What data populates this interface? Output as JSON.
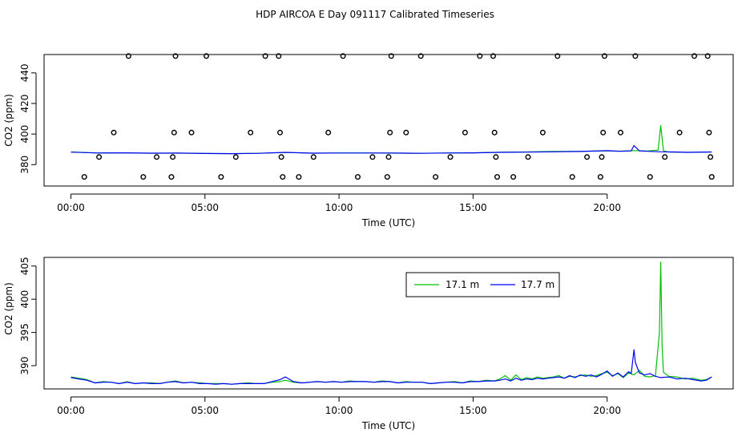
{
  "title": "HDP AIRCOA E  Day 091117  Calibrated Timeseries",
  "chart_data": [
    {
      "type": "line",
      "name": "top-panel",
      "xlabel": "Time (UTC)",
      "ylabel": "CO2 (ppm)",
      "xlim": [
        -1,
        24.7
      ],
      "ylim": [
        366,
        452
      ],
      "x_tick_values": [
        0,
        5,
        10,
        15,
        20
      ],
      "x_tick_labels": [
        "00:00",
        "05:00",
        "10:00",
        "15:00",
        "20:00"
      ],
      "y_ticks": [
        380,
        400,
        420,
        440
      ],
      "grid": false,
      "line_series": [
        {
          "color": "#00c000",
          "x": [
            0.0,
            1.0,
            2.0,
            3.0,
            4.0,
            5.0,
            6.0,
            7.0,
            8.0,
            9.0,
            10.0,
            11.0,
            12.0,
            13.0,
            14.0,
            15.0,
            16.0,
            17.0,
            18.0,
            19.0,
            20.0,
            20.5,
            21.0,
            21.5,
            21.9,
            22.0,
            22.1,
            22.3,
            23.0,
            23.9
          ],
          "y": [
            388.3,
            387.6,
            387.7,
            387.4,
            387.5,
            387.3,
            387.2,
            387.4,
            387.9,
            387.5,
            387.6,
            387.6,
            387.5,
            387.4,
            387.6,
            387.7,
            388.1,
            388.3,
            388.6,
            388.7,
            389.0,
            388.8,
            389.2,
            388.9,
            389.5,
            405.6,
            389.0,
            388.2,
            388.0,
            388.3
          ]
        },
        {
          "color": "#0000ff",
          "x": [
            0.0,
            1.0,
            2.0,
            3.0,
            4.0,
            5.0,
            6.0,
            7.0,
            8.0,
            9.0,
            10.0,
            11.0,
            12.0,
            13.0,
            14.0,
            15.0,
            16.0,
            17.0,
            18.0,
            19.0,
            20.0,
            20.5,
            20.9,
            21.0,
            21.2,
            21.5,
            22.0,
            22.5,
            23.0,
            23.9
          ],
          "y": [
            388.2,
            387.6,
            387.7,
            387.5,
            387.6,
            387.3,
            387.2,
            387.4,
            388.0,
            387.5,
            387.6,
            387.6,
            387.6,
            387.4,
            387.6,
            387.7,
            388.0,
            388.2,
            388.4,
            388.6,
            389.1,
            388.7,
            389.0,
            392.5,
            389.0,
            388.7,
            388.4,
            388.3,
            388.0,
            388.3
          ]
        }
      ],
      "scatter_series": {
        "marker": "open-circle",
        "color": "#000000",
        "points": [
          [
            0.5,
            372
          ],
          [
            1.05,
            385
          ],
          [
            1.6,
            401
          ],
          [
            2.15,
            451
          ],
          [
            2.7,
            372
          ],
          [
            3.2,
            385
          ],
          [
            3.75,
            372
          ],
          [
            3.8,
            385
          ],
          [
            3.85,
            401
          ],
          [
            3.9,
            451
          ],
          [
            4.5,
            401
          ],
          [
            5.05,
            451
          ],
          [
            5.6,
            372
          ],
          [
            6.15,
            385
          ],
          [
            6.7,
            401
          ],
          [
            7.25,
            451
          ],
          [
            7.75,
            451
          ],
          [
            7.8,
            401
          ],
          [
            7.85,
            385
          ],
          [
            7.9,
            372
          ],
          [
            8.5,
            372
          ],
          [
            9.05,
            385
          ],
          [
            9.6,
            401
          ],
          [
            10.15,
            451
          ],
          [
            10.7,
            372
          ],
          [
            11.25,
            385
          ],
          [
            11.8,
            372
          ],
          [
            11.85,
            385
          ],
          [
            11.9,
            401
          ],
          [
            11.95,
            451
          ],
          [
            12.5,
            401
          ],
          [
            13.05,
            451
          ],
          [
            13.6,
            372
          ],
          [
            14.15,
            385
          ],
          [
            14.7,
            401
          ],
          [
            15.25,
            451
          ],
          [
            15.75,
            451
          ],
          [
            15.8,
            401
          ],
          [
            15.85,
            385
          ],
          [
            15.9,
            372
          ],
          [
            16.5,
            372
          ],
          [
            17.05,
            385
          ],
          [
            17.6,
            401
          ],
          [
            18.15,
            451
          ],
          [
            18.7,
            372
          ],
          [
            19.25,
            385
          ],
          [
            19.75,
            372
          ],
          [
            19.8,
            385
          ],
          [
            19.85,
            401
          ],
          [
            19.9,
            451
          ],
          [
            20.5,
            401
          ],
          [
            21.05,
            451
          ],
          [
            21.6,
            372
          ],
          [
            22.15,
            385
          ],
          [
            22.7,
            401
          ],
          [
            23.25,
            451
          ],
          [
            23.75,
            451
          ],
          [
            23.8,
            401
          ],
          [
            23.85,
            385
          ],
          [
            23.9,
            372
          ]
        ]
      }
    },
    {
      "type": "line",
      "name": "bottom-panel",
      "xlabel": "Time (UTC)",
      "ylabel": "CO2 (ppm)",
      "xlim": [
        -1,
        24.7
      ],
      "ylim": [
        386.5,
        406.3
      ],
      "x_tick_values": [
        0,
        5,
        10,
        15,
        20
      ],
      "x_tick_labels": [
        "00:00",
        "05:00",
        "10:00",
        "15:00",
        "20:00"
      ],
      "y_ticks": [
        390,
        395,
        400,
        405
      ],
      "grid": false,
      "legend_position": "top-right",
      "series": [
        {
          "name": "17.1 m",
          "color": "#00c000",
          "x": [
            0.0,
            0.3,
            0.6,
            0.9,
            1.2,
            1.5,
            1.8,
            2.1,
            2.4,
            2.7,
            3.0,
            3.3,
            3.6,
            3.9,
            4.2,
            4.5,
            4.8,
            5.1,
            5.4,
            5.7,
            6.0,
            6.3,
            6.6,
            6.9,
            7.2,
            7.5,
            7.8,
            8.0,
            8.3,
            8.6,
            8.9,
            9.2,
            9.5,
            9.8,
            10.1,
            10.4,
            10.7,
            11.0,
            11.3,
            11.6,
            11.9,
            12.2,
            12.5,
            12.8,
            13.1,
            13.4,
            13.7,
            14.0,
            14.3,
            14.6,
            14.9,
            15.2,
            15.5,
            15.8,
            16.0,
            16.2,
            16.4,
            16.6,
            16.8,
            17.0,
            17.2,
            17.4,
            17.6,
            17.8,
            18.0,
            18.2,
            18.4,
            18.6,
            18.8,
            19.0,
            19.2,
            19.4,
            19.6,
            19.8,
            20.0,
            20.2,
            20.4,
            20.6,
            20.8,
            21.0,
            21.2,
            21.4,
            21.6,
            21.8,
            21.95,
            22.0,
            22.05,
            22.1,
            22.3,
            22.6,
            22.9,
            23.2,
            23.5,
            23.7,
            23.9
          ],
          "y": [
            388.3,
            388.1,
            387.9,
            387.4,
            387.6,
            387.5,
            387.3,
            387.6,
            387.3,
            387.4,
            387.4,
            387.3,
            387.5,
            387.7,
            387.4,
            387.5,
            387.4,
            387.3,
            387.3,
            387.3,
            387.2,
            387.3,
            387.4,
            387.3,
            387.3,
            387.5,
            387.6,
            387.8,
            387.5,
            387.4,
            387.5,
            387.6,
            387.5,
            387.6,
            387.5,
            387.7,
            387.6,
            387.6,
            387.5,
            387.7,
            387.6,
            387.4,
            387.6,
            387.5,
            387.5,
            387.3,
            387.4,
            387.5,
            387.6,
            387.4,
            387.7,
            387.6,
            387.8,
            387.7,
            388.0,
            388.5,
            387.8,
            388.6,
            387.9,
            388.2,
            388.0,
            388.3,
            388.1,
            388.2,
            388.3,
            388.5,
            388.1,
            388.4,
            388.3,
            388.5,
            388.6,
            388.4,
            388.5,
            388.8,
            389.0,
            388.5,
            388.8,
            388.2,
            388.9,
            388.6,
            389.3,
            388.4,
            388.3,
            388.5,
            395.0,
            405.6,
            393.0,
            389.0,
            388.4,
            388.3,
            388.0,
            388.1,
            387.8,
            387.9,
            388.3
          ]
        },
        {
          "name": "17.7 m",
          "color": "#0000ff",
          "x": [
            0.0,
            0.3,
            0.6,
            0.9,
            1.2,
            1.5,
            1.8,
            2.1,
            2.4,
            2.7,
            3.0,
            3.3,
            3.6,
            3.9,
            4.2,
            4.5,
            4.8,
            5.1,
            5.4,
            5.7,
            6.0,
            6.3,
            6.6,
            6.9,
            7.2,
            7.5,
            7.8,
            8.0,
            8.3,
            8.6,
            8.9,
            9.2,
            9.5,
            9.8,
            10.1,
            10.4,
            10.7,
            11.0,
            11.3,
            11.6,
            11.9,
            12.2,
            12.5,
            12.8,
            13.1,
            13.4,
            13.7,
            14.0,
            14.3,
            14.6,
            14.9,
            15.2,
            15.5,
            15.8,
            16.0,
            16.2,
            16.4,
            16.6,
            16.8,
            17.0,
            17.2,
            17.4,
            17.6,
            17.8,
            18.0,
            18.2,
            18.4,
            18.6,
            18.8,
            19.0,
            19.2,
            19.4,
            19.6,
            19.8,
            20.0,
            20.2,
            20.4,
            20.6,
            20.8,
            20.9,
            21.0,
            21.05,
            21.2,
            21.4,
            21.6,
            21.8,
            22.0,
            22.3,
            22.6,
            22.9,
            23.2,
            23.5,
            23.7,
            23.9
          ],
          "y": [
            388.2,
            388.0,
            387.8,
            387.4,
            387.5,
            387.5,
            387.3,
            387.5,
            387.3,
            387.4,
            387.3,
            387.3,
            387.5,
            387.6,
            387.4,
            387.5,
            387.3,
            387.3,
            387.2,
            387.3,
            387.2,
            387.3,
            387.3,
            387.3,
            387.3,
            387.6,
            387.9,
            388.3,
            387.6,
            387.4,
            387.5,
            387.6,
            387.5,
            387.6,
            387.5,
            387.6,
            387.6,
            387.6,
            387.5,
            387.6,
            387.6,
            387.4,
            387.5,
            387.5,
            387.5,
            387.3,
            387.4,
            387.5,
            387.5,
            387.4,
            387.6,
            387.6,
            387.7,
            387.7,
            387.8,
            388.0,
            387.7,
            388.1,
            387.8,
            388.0,
            387.9,
            388.1,
            388.0,
            388.1,
            388.2,
            388.3,
            388.1,
            388.5,
            388.2,
            388.6,
            388.4,
            388.6,
            388.3,
            388.7,
            389.2,
            388.4,
            388.9,
            388.3,
            389.1,
            388.8,
            392.4,
            390.5,
            388.9,
            388.6,
            388.8,
            388.4,
            388.2,
            388.3,
            388.0,
            388.1,
            387.9,
            387.7,
            387.8,
            388.3
          ]
        }
      ]
    }
  ]
}
